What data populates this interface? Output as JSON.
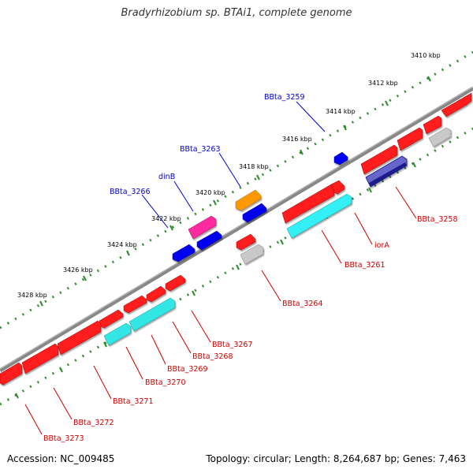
{
  "title": "Bradyrhizobium sp. BTAi1, complete genome",
  "footer": {
    "accession": "Accession: NC_009485",
    "summary": "Topology: circular; Length: 8,264,687 bp; Genes: 7,463"
  },
  "colors": {
    "backbone": "#888888",
    "tick": "#2e8b2e",
    "red": "#ff0000",
    "blue": "#0000ff",
    "navy": "#1a1a8c",
    "cyan": "#00e5ee",
    "orange": "#ff8c00",
    "magenta": "#ff1493",
    "gray": "#b0b0b0",
    "label_blue": "#0000cc",
    "label_red": "#cc0000"
  },
  "scale_labels": [
    "3410 kbp",
    "3412 kbp",
    "3414 kbp",
    "3416 kbp",
    "3418 kbp",
    "3420 kbp",
    "3422 kbp",
    "3424 kbp",
    "3426 kbp",
    "3428 kbp"
  ],
  "gene_labels_top": [
    "BBta_3259",
    "BBta_3263",
    "dinB",
    "BBta_3266"
  ],
  "gene_labels_bottom": [
    "BBta_3258",
    "iorA",
    "BBta_3261",
    "BBta_3264",
    "BBta_3267",
    "BBta_3268",
    "BBta_3269",
    "BBta_3270",
    "BBta_3271",
    "BBta_3272",
    "BBta_3273"
  ]
}
